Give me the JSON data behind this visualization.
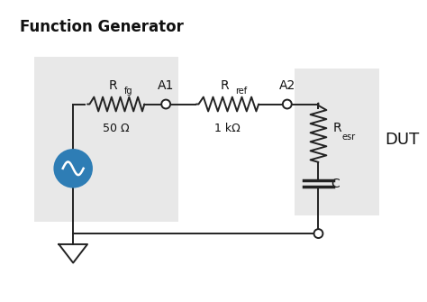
{
  "title": "Function Generator",
  "bg_color": "#ffffff",
  "box_fg_color": "#e8e8e8",
  "box_dut_color": "#e8e8e8",
  "line_color": "#222222",
  "source_color": "#2e7db5",
  "label_rfg": "R",
  "label_rfg_sub": "fg",
  "label_rfg_val": "50 Ω",
  "label_a1": "A1",
  "label_rref": "R",
  "label_rref_sub": "ref",
  "label_rref_val": "1 kΩ",
  "label_a2": "A2",
  "label_resr": "R",
  "label_resr_sub": "esr",
  "label_c": "C",
  "label_dut": "DUT",
  "title_fontsize": 12,
  "label_fontsize": 10,
  "sub_fontsize": 7,
  "val_fontsize": 9,
  "dut_fontsize": 13
}
